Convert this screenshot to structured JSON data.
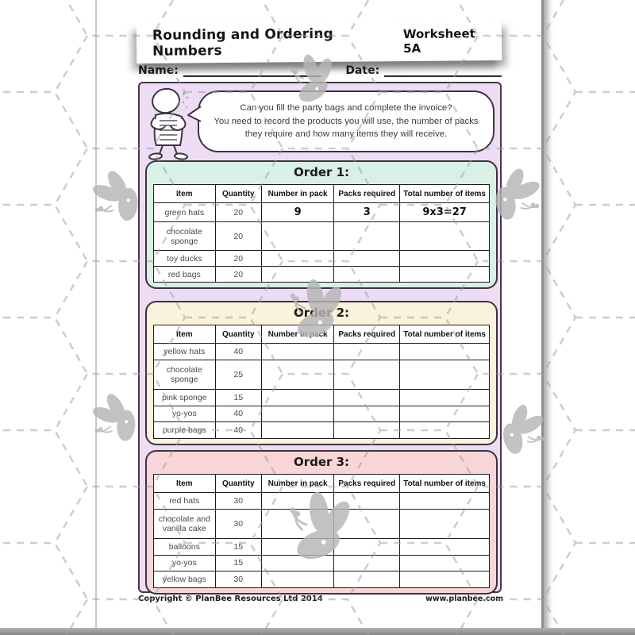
{
  "header": {
    "title": "Rounding and Ordering Numbers",
    "worksheet_label": "Worksheet 5A",
    "name_label": "Name:",
    "date_label": "Date:"
  },
  "intro": {
    "text": "Can you fill the party bags and complete the invoice?\nYou need to record the products you will use, the number of packs\nthey require and how many items they will receive."
  },
  "tables": [
    {
      "title": "Order 1:",
      "theme": "#d9f1e4",
      "headers": [
        "Item",
        "Quantity",
        "Number in pack",
        "Packs required",
        "Total number of items"
      ],
      "rows": [
        [
          "green hats",
          "20",
          "9",
          "3",
          "9x3=27"
        ],
        [
          "chocolate sponge",
          "20",
          "",
          "",
          ""
        ],
        [
          "toy ducks",
          "20",
          "",
          "",
          ""
        ],
        [
          "red bags",
          "20",
          "",
          "",
          ""
        ]
      ]
    },
    {
      "title": "Order 2:",
      "theme": "#faf2dc",
      "headers": [
        "Item",
        "Quantity",
        "Number in pack",
        "Packs required",
        "Total number of items"
      ],
      "rows": [
        [
          "yellow hats",
          "40",
          "",
          "",
          ""
        ],
        [
          "chocolate sponge",
          "25",
          "",
          "",
          ""
        ],
        [
          "pink sponge",
          "15",
          "",
          "",
          ""
        ],
        [
          "yo-yos",
          "40",
          "",
          "",
          ""
        ],
        [
          "purple bags",
          "40",
          "",
          "",
          ""
        ]
      ]
    },
    {
      "title": "Order 3:",
      "theme": "#f8d6d7",
      "headers": [
        "Item",
        "Quantity",
        "Number in pack",
        "Packs required",
        "Total number of items"
      ],
      "rows": [
        [
          "red hats",
          "30",
          "",
          "",
          ""
        ],
        [
          "chocolate and vanilla cake",
          "30",
          "",
          "",
          ""
        ],
        [
          "balloons",
          "15",
          "",
          "",
          ""
        ],
        [
          "yo-yos",
          "15",
          "",
          "",
          ""
        ],
        [
          "yellow bags",
          "30",
          "",
          "",
          ""
        ]
      ]
    }
  ],
  "footer": {
    "left": "Copyright © PlanBee Resources Ltd 2014",
    "right": "www.planbee.com"
  },
  "colors": {
    "sheet_bg": "#eedcf4",
    "order1_bg": "#d9f1e4",
    "order2_bg": "#faf2dc",
    "order3_bg": "#f8d6d7",
    "border_dark": "#3a3440",
    "table_border": "#1c1c1c",
    "bee_gray": "#b5b5b5",
    "hex_pattern_gray": "#9a9a9a"
  }
}
